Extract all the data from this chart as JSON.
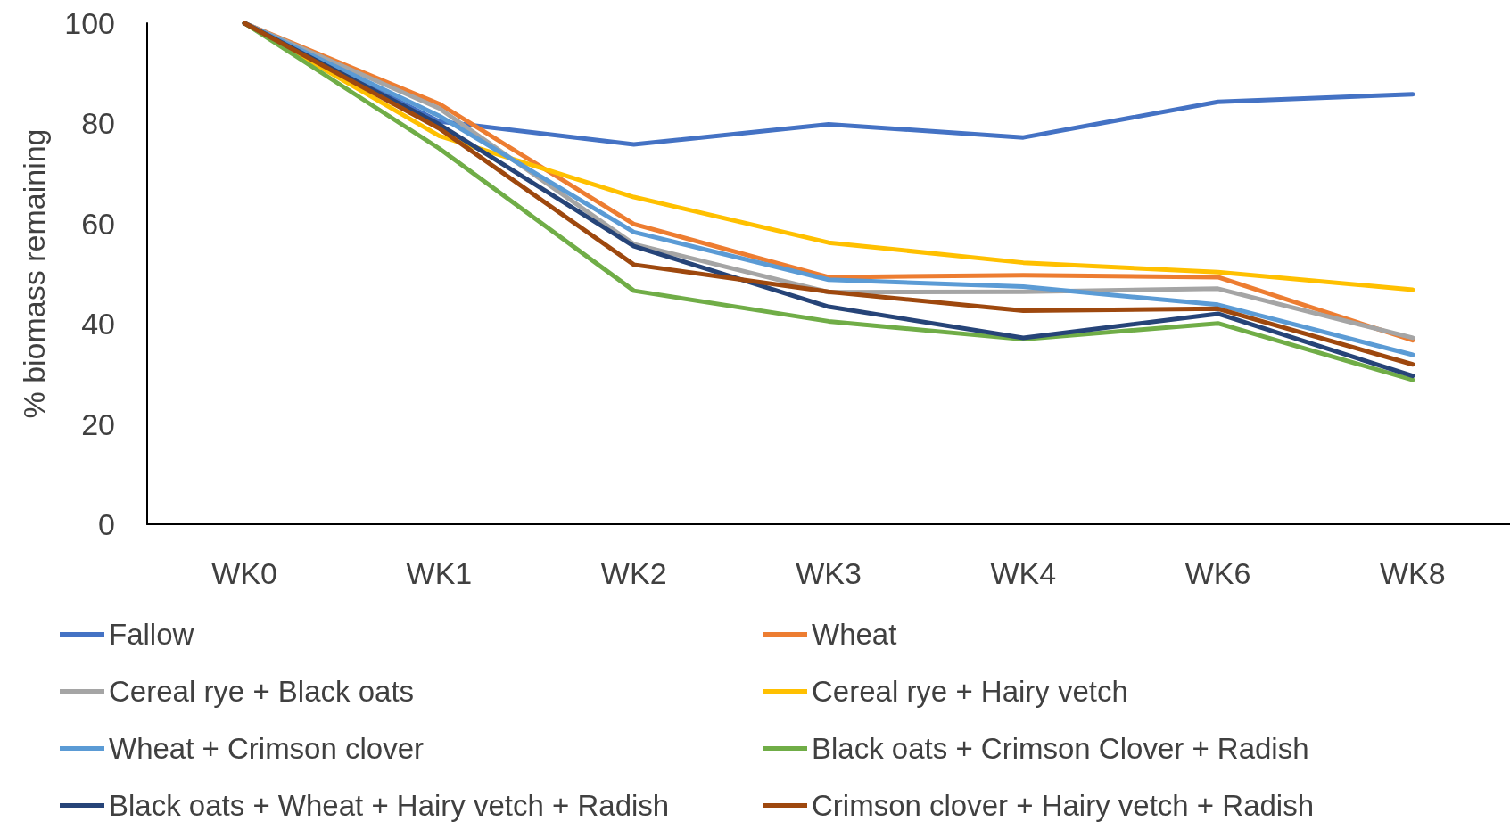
{
  "chart_data": {
    "type": "line",
    "ylabel": "% biomass remaining",
    "categories": [
      "WK0",
      "WK1",
      "WK2",
      "WK3",
      "WK4",
      "WK6",
      "WK8"
    ],
    "ylim": [
      0,
      100
    ],
    "yticks": [
      0,
      20,
      40,
      60,
      80,
      100
    ],
    "grid": false,
    "legend": "bottom",
    "marker": "none",
    "line_style": "solid",
    "series": [
      {
        "name": "Fallow",
        "color": "#4472c4",
        "values": [
          100,
          80.4,
          75.8,
          79.8,
          77.2,
          84.3,
          85.8
        ]
      },
      {
        "name": "Wheat",
        "color": "#ed7d31",
        "values": [
          100,
          83.9,
          59.9,
          49.3,
          49.7,
          49.3,
          36.7
        ]
      },
      {
        "name": "Cereal rye + Black oats",
        "color": "#a5a5a5",
        "values": [
          100,
          83,
          55.9,
          46.3,
          46.4,
          47,
          37.2
        ]
      },
      {
        "name": "Cereal rye + Hairy vetch",
        "color": "#ffc000",
        "values": [
          100,
          77.5,
          65.3,
          56.2,
          52.2,
          50.3,
          46.8
        ]
      },
      {
        "name": "Wheat + Crimson clover",
        "color": "#5b9bd5",
        "values": [
          100,
          81.5,
          58.3,
          48.8,
          47.4,
          43.8,
          33.8
        ]
      },
      {
        "name": "Black oats + Crimson Clover + Radish",
        "color": "#70ad47",
        "values": [
          100,
          75,
          46.6,
          40.5,
          36.9,
          40.1,
          28.8
        ]
      },
      {
        "name": "Black oats + Wheat + Hairy vetch + Radish",
        "color": "#264478",
        "values": [
          100,
          79.8,
          55.5,
          43.4,
          37.2,
          42,
          29.6
        ]
      },
      {
        "name": "Crimson clover + Hairy vetch + Radish",
        "color": "#9e480e",
        "values": [
          100,
          79,
          51.8,
          46.4,
          42.6,
          43,
          31.9
        ]
      }
    ]
  }
}
